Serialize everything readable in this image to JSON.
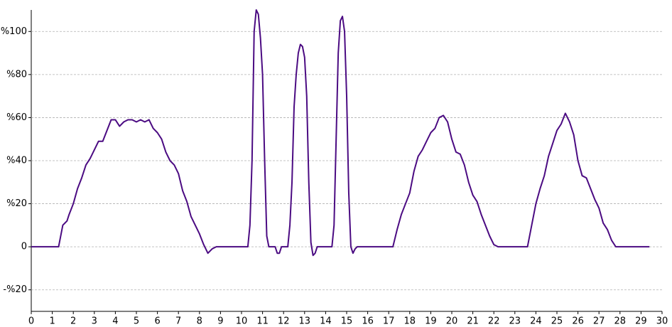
{
  "chart_data": {
    "type": "line",
    "color": "#4b0b82",
    "grid": true,
    "x": [
      0,
      1.3,
      1.5,
      1.7,
      1.8,
      2.0,
      2.2,
      2.4,
      2.6,
      2.8,
      3.0,
      3.2,
      3.4,
      3.6,
      3.8,
      4.0,
      4.2,
      4.4,
      4.6,
      4.8,
      5.0,
      5.2,
      5.4,
      5.6,
      5.8,
      6.0,
      6.2,
      6.4,
      6.6,
      6.8,
      7.0,
      7.2,
      7.4,
      7.6,
      7.8,
      8.0,
      8.2,
      8.4,
      8.6,
      8.8,
      10.3,
      10.4,
      10.5,
      10.6,
      10.7,
      10.8,
      10.9,
      11.0,
      11.1,
      11.2,
      11.3,
      11.6,
      11.7,
      11.8,
      11.9,
      12.2,
      12.3,
      12.4,
      12.5,
      12.6,
      12.7,
      12.8,
      12.9,
      13.0,
      13.1,
      13.2,
      13.3,
      13.4,
      13.5,
      13.6,
      14.3,
      14.4,
      14.5,
      14.6,
      14.7,
      14.8,
      14.9,
      15.0,
      15.1,
      15.2,
      15.3,
      15.4,
      15.5,
      17.2,
      17.4,
      17.6,
      17.8,
      18.0,
      18.2,
      18.4,
      18.6,
      18.8,
      19.0,
      19.2,
      19.4,
      19.6,
      19.8,
      20.0,
      20.2,
      20.4,
      20.6,
      20.8,
      21.0,
      21.2,
      21.4,
      21.6,
      21.8,
      22.0,
      22.2,
      23.6,
      23.8,
      24.0,
      24.2,
      24.4,
      24.6,
      24.8,
      25.0,
      25.2,
      25.4,
      25.6,
      25.8,
      26.0,
      26.2,
      26.4,
      26.6,
      26.8,
      27.0,
      27.2,
      27.4,
      27.6,
      27.8,
      29.4
    ],
    "values": [
      0,
      0,
      10,
      12,
      15,
      20,
      27,
      32,
      38,
      41,
      45,
      49,
      49,
      54,
      59,
      59,
      56,
      58,
      59,
      59,
      58,
      59,
      58,
      59,
      55,
      53,
      50,
      44,
      40,
      38,
      34,
      26,
      21,
      14,
      10,
      6,
      1,
      -3,
      -1,
      0,
      0,
      10,
      40,
      100,
      110,
      108,
      97,
      80,
      40,
      5,
      0,
      0,
      -3,
      -3,
      0,
      0,
      10,
      30,
      65,
      80,
      90,
      94,
      93,
      88,
      70,
      30,
      2,
      -4,
      -3,
      0,
      0,
      10,
      50,
      90,
      105,
      107,
      100,
      70,
      25,
      0,
      -3,
      -1,
      0,
      0,
      8,
      15,
      20,
      25,
      35,
      42,
      45,
      49,
      53,
      55,
      60,
      61,
      58,
      50,
      44,
      43,
      38,
      30,
      24,
      21,
      15,
      10,
      5,
      1,
      0,
      0,
      10,
      20,
      27,
      33,
      42,
      48,
      54,
      57,
      62,
      58,
      52,
      40,
      33,
      32,
      27,
      22,
      18,
      11,
      8,
      3,
      0,
      0
    ],
    "xlim": [
      0,
      30
    ],
    "xticks": [
      0,
      1,
      2,
      3,
      4,
      5,
      6,
      7,
      8,
      9,
      10,
      11,
      12,
      13,
      14,
      15,
      16,
      17,
      18,
      19,
      20,
      21,
      22,
      23,
      24,
      25,
      26,
      27,
      28,
      29,
      30
    ],
    "ylim": [
      -30,
      110
    ],
    "yticks": [
      {
        "value": -20,
        "label": "-%20"
      },
      0,
      {
        "value": 20,
        "label": "%20"
      },
      {
        "value": 40,
        "label": "%40"
      },
      {
        "value": 60,
        "label": "%60"
      },
      {
        "value": 80,
        "label": "%80"
      },
      {
        "value": 100,
        "label": "%100"
      }
    ]
  }
}
